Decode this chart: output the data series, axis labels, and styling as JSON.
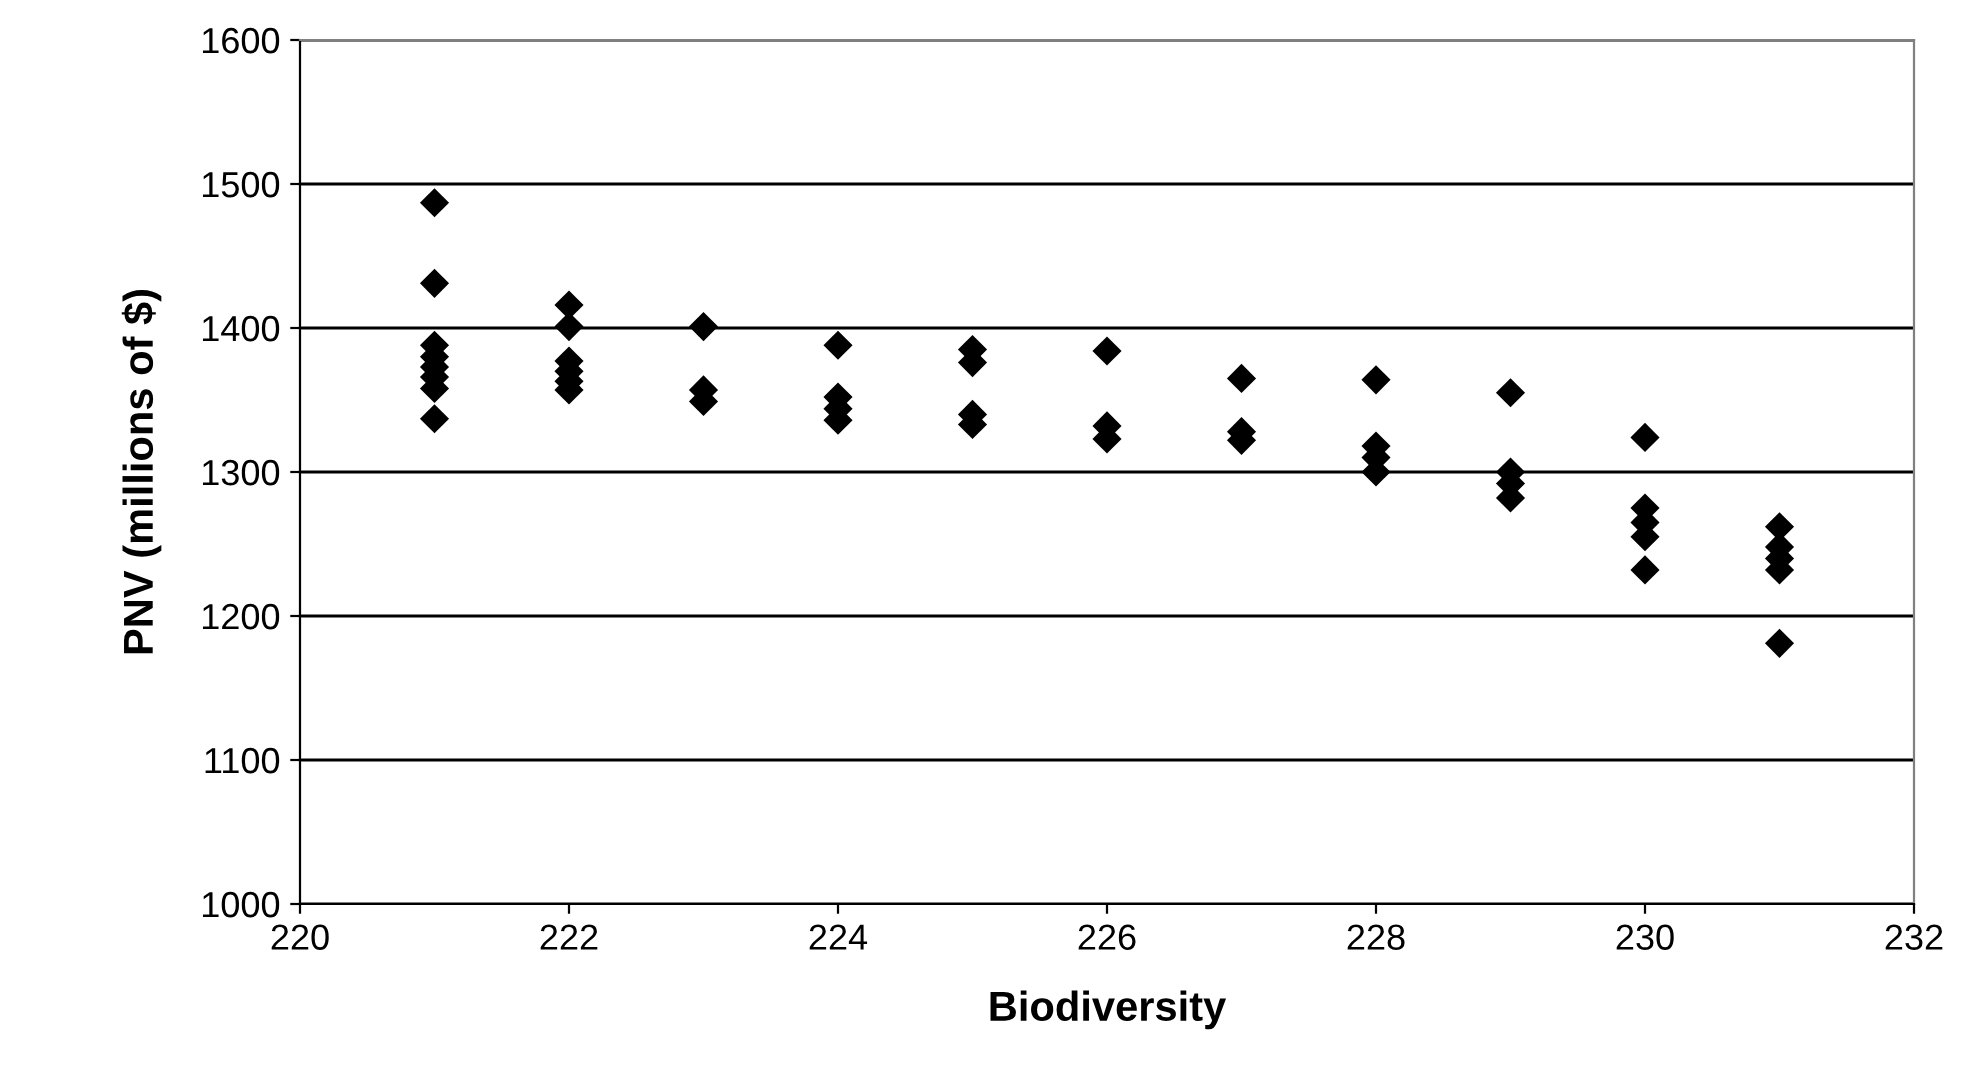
{
  "chart_data": {
    "type": "scatter",
    "xlabel": "Biodiversity",
    "ylabel": "PNV (millions of $)",
    "x": [
      221,
      221,
      221,
      221,
      221,
      221,
      221,
      221,
      222,
      222,
      222,
      222,
      222,
      222,
      223,
      223,
      223,
      224,
      224,
      224,
      224,
      225,
      225,
      225,
      225,
      226,
      226,
      226,
      227,
      227,
      227,
      228,
      228,
      228,
      228,
      229,
      229,
      229,
      229,
      230,
      230,
      230,
      230,
      230,
      231,
      231,
      231,
      231,
      231
    ],
    "series": [
      {
        "color": "#000000",
        "values": [
          1487,
          1431,
          1388,
          1380,
          1373,
          1366,
          1358,
          1337,
          1416,
          1401,
          1377,
          1370,
          1363,
          1357,
          1401,
          1357,
          1349,
          1388,
          1352,
          1344,
          1336,
          1385,
          1376,
          1340,
          1333,
          1384,
          1332,
          1323,
          1365,
          1328,
          1322,
          1364,
          1318,
          1310,
          1300,
          1355,
          1300,
          1292,
          1282,
          1324,
          1275,
          1265,
          1255,
          1232,
          1262,
          1248,
          1240,
          1232,
          1181
        ]
      }
    ],
    "marker": "diamond",
    "xlim": [
      220,
      232
    ],
    "xticks": [
      220,
      222,
      224,
      226,
      228,
      230,
      232
    ],
    "ylim": [
      1000,
      1600
    ],
    "yticks": [
      1000,
      1100,
      1200,
      1300,
      1400,
      1500,
      1600
    ],
    "grid": "y",
    "legend": false
  }
}
